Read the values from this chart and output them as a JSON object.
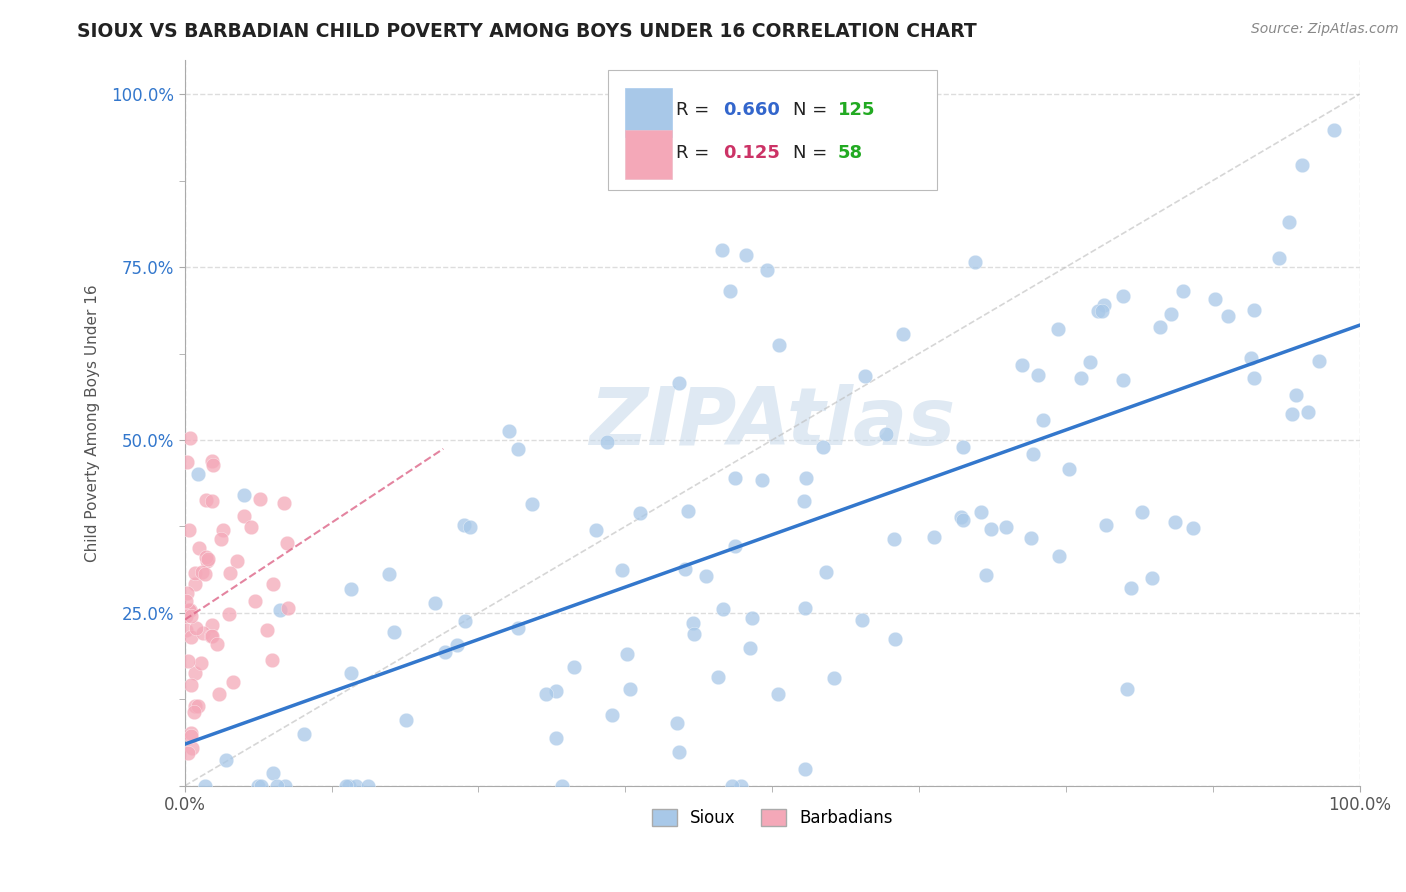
{
  "title": "SIOUX VS BARBADIAN CHILD POVERTY AMONG BOYS UNDER 16 CORRELATION CHART",
  "source": "Source: ZipAtlas.com",
  "ylabel": "Child Poverty Among Boys Under 16",
  "sioux_R": 0.66,
  "sioux_N": 125,
  "barbadian_R": 0.125,
  "barbadian_N": 58,
  "sioux_color": "#a8c8e8",
  "barbadian_color": "#f4a8b8",
  "sioux_line_color": "#3377cc",
  "barbadian_line_color": "#dd6688",
  "ref_line_color": "#bbbbbb",
  "watermark": "ZIPAtlas",
  "legend_R_sioux_color": "#3366cc",
  "legend_R_barbadian_color": "#cc3366",
  "legend_N_color": "#22aa22",
  "title_color": "#222222",
  "source_color": "#888888",
  "ylabel_color": "#555555",
  "ytick_color": "#3377cc",
  "xtick_color": "#555555",
  "grid_color": "#dddddd",
  "spine_color": "#aaaaaa"
}
